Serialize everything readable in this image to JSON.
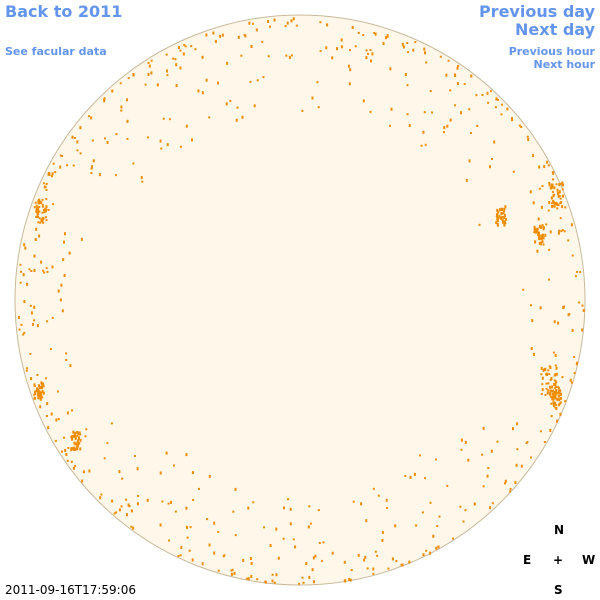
{
  "links": {
    "back": "Back to 2011",
    "facular": "See facular data",
    "previous_day": "Previous day",
    "next_day": "Next day",
    "previous_hour": "Previous hour",
    "next_hour": "Next hour"
  },
  "compass": {
    "north": "N",
    "east": "E",
    "center": "+",
    "west": "W",
    "south": "S"
  },
  "timestamp": "2011-09-16T17:59:06"
}
